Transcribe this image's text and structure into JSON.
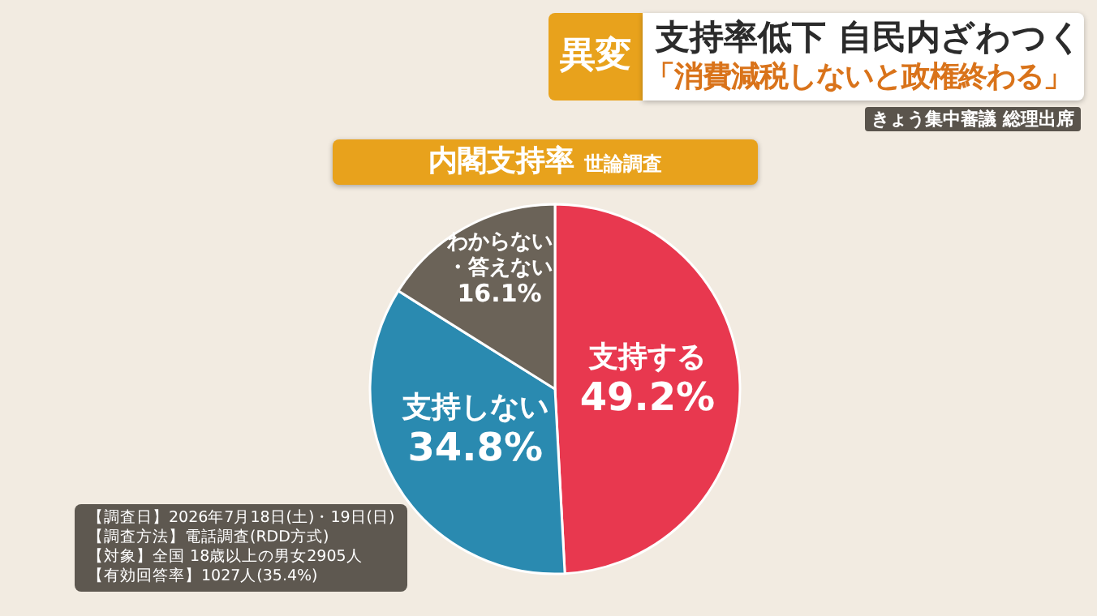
{
  "chart_data": {
    "type": "pie",
    "title": "内閣支持率",
    "subtitle": "世論調査",
    "categories": [
      "支持する",
      "支持しない",
      "わからない・答えない"
    ],
    "values": [
      49.2,
      34.8,
      16.1
    ],
    "value_labels": [
      "49.2%",
      "34.8%",
      "16.1%"
    ],
    "colors": [
      "#e8384f",
      "#2a8ab0",
      "#6b6358"
    ],
    "annotations": [
      "異変",
      "支持率低下 自民内ざわつく",
      "「消費減税しないと政権終わる」",
      "きょう集中審議 総理出席",
      "【調査日】2026年7月18日(土)・19日(日)",
      "【調査方法】電話調査(RDD方式)",
      "【対象】全国 18歳以上の男女2905人",
      "【有効回答率】1027人(35.4%)"
    ]
  }
}
